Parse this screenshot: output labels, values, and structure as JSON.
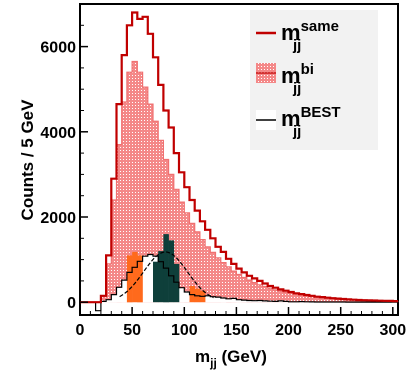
{
  "chart_data": {
    "type": "histogram",
    "xlabel_main": "m",
    "xlabel_sub": "jj",
    "xlabel_unit": " (GeV)",
    "ylabel": "Counts / 5 GeV",
    "xlim": [
      0,
      305
    ],
    "ylim": [
      -300,
      7000
    ],
    "xticks": [
      0,
      50,
      100,
      150,
      200,
      250,
      300
    ],
    "yticks": [
      0,
      2000,
      4000,
      6000
    ],
    "grid": false,
    "legend_position": "top-right",
    "legend": [
      {
        "main": "m",
        "sub": "jj",
        "sup": "same",
        "style": "red-line"
      },
      {
        "main": "m",
        "sub": "jj",
        "sup": "bi",
        "style": "red-fill"
      },
      {
        "main": "m",
        "sub": "jj",
        "sup": "BEST",
        "style": "black-line"
      }
    ],
    "bin_width": 5,
    "bin_start": 0,
    "series": [
      {
        "name": "m_jj^same",
        "color": "#c00000",
        "values": [
          0,
          0,
          0,
          0,
          150,
          1100,
          2900,
          4650,
          5800,
          6500,
          6800,
          6650,
          6700,
          6300,
          5750,
          5100,
          4500,
          4100,
          3500,
          3050,
          2700,
          2400,
          2150,
          1900,
          1700,
          1500,
          1300,
          1180,
          1020,
          900,
          790,
          700,
          620,
          560,
          500,
          440,
          380,
          340,
          300,
          270,
          240,
          210,
          190,
          170,
          150,
          130,
          120,
          105,
          95,
          85,
          75,
          65,
          58,
          52,
          48,
          44,
          40,
          36,
          33,
          30,
          27
        ]
      },
      {
        "name": "m_jj^bi",
        "color": "#f07070",
        "values": [
          0,
          0,
          0,
          0,
          130,
          900,
          2400,
          3700,
          4700,
          5400,
          5650,
          5400,
          5050,
          4650,
          4250,
          3800,
          3350,
          3000,
          2650,
          2350,
          2100,
          1850,
          1650,
          1470,
          1300,
          1170,
          1040,
          930,
          830,
          730,
          650,
          580,
          520,
          460,
          410,
          370,
          330,
          290,
          260,
          230,
          205,
          185,
          165,
          148,
          132,
          118,
          105,
          95,
          85,
          76,
          68,
          61,
          55,
          50,
          45,
          41,
          37,
          33,
          30,
          27,
          24
        ]
      },
      {
        "name": "m_jj^BEST",
        "color": "#000000",
        "values": [
          0,
          0,
          0,
          -200,
          20,
          60,
          180,
          350,
          520,
          700,
          820,
          960,
          1080,
          1120,
          1080,
          950,
          800,
          620,
          470,
          340,
          240,
          180,
          150,
          140,
          150,
          130,
          120,
          100,
          80,
          90,
          60,
          50,
          40,
          35,
          40,
          30,
          25,
          20,
          30,
          20,
          10,
          10,
          15,
          10,
          8,
          6,
          6,
          5,
          5,
          4,
          4,
          3,
          3,
          3,
          2,
          2,
          2,
          2,
          1,
          1,
          1
        ]
      }
    ],
    "fit": {
      "name": "gaussian fit",
      "mean": 82,
      "sigma": 21,
      "amplitude": 1180,
      "range": [
        38,
        128
      ],
      "color": "#000000"
    },
    "highlight_bins": [
      {
        "from": 45,
        "to": 60,
        "color": "#ff6a1c",
        "values": [
          1100,
          1180,
          1100
        ]
      },
      {
        "from": 105,
        "to": 120,
        "color": "#ff6a1c",
        "values": [
          380,
          320,
          270
        ]
      },
      {
        "from": 70,
        "to": 95,
        "color": "#0e3f3a",
        "values": [
          950,
          1200,
          1600,
          1450,
          900
        ]
      }
    ]
  }
}
